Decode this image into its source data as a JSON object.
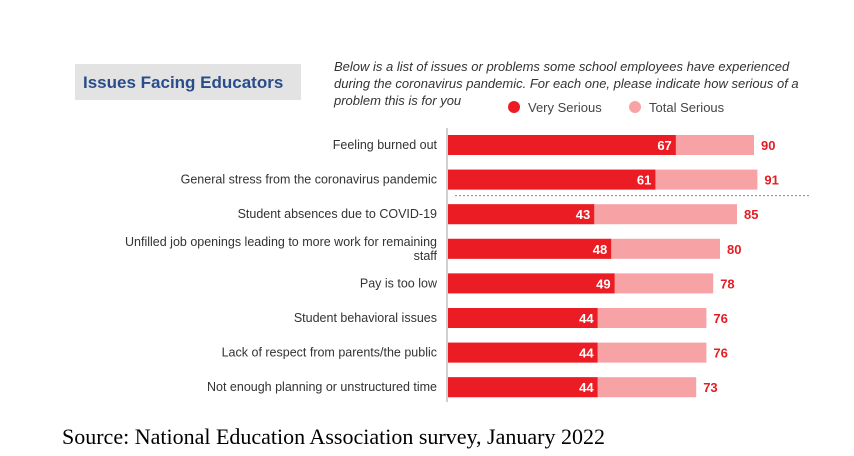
{
  "chart_data": {
    "type": "bar",
    "orientation": "horizontal",
    "title": "Issues Facing Educators",
    "subtitle": "Below is a list of issues or problems some school employees have experienced during the coronavirus pandemic. For each one, please indicate how serious of a problem this is for you",
    "categories": [
      "Feeling burned out",
      "General stress from the coronavirus pandemic",
      "Student absences due to COVID-19",
      "Unfilled job openings leading to more work for remaining staff",
      "Pay is too low",
      "Student behavioral issues",
      "Lack of respect from parents/the public",
      "Not enough planning or unstructured time"
    ],
    "category_lines": [
      [
        "Feeling burned out"
      ],
      [
        "General stress from the coronavirus pandemic"
      ],
      [
        "Student absences due to COVID-19"
      ],
      [
        "Unfilled job openings leading to more work for remaining",
        "staff"
      ],
      [
        "Pay is too low"
      ],
      [
        "Student behavioral issues"
      ],
      [
        "Lack of respect from parents/the public"
      ],
      [
        "Not enough planning or unstructured time"
      ]
    ],
    "series": [
      {
        "name": "Very Serious",
        "color": "#ec1c24",
        "values": [
          67,
          61,
          43,
          48,
          49,
          44,
          44,
          44
        ]
      },
      {
        "name": "Total Serious",
        "color": "#f7a3a6",
        "values": [
          90,
          91,
          85,
          80,
          78,
          76,
          76,
          73
        ]
      }
    ],
    "label_color_inside": "#ffffff",
    "label_color_outside": "#e31d25",
    "separator_after_index": 1,
    "xlim": [
      0,
      100
    ],
    "grid": false,
    "legend": "top-right",
    "xlabel": "",
    "ylabel": ""
  },
  "header": {
    "title": "Issues Facing Educators",
    "question": "Below is a list of issues or problems some school employees have experienced during the coronavirus pandemic. For each one, please indicate how serious of a problem this is for you"
  },
  "legend": {
    "items": [
      {
        "label": "Very Serious",
        "color": "#ec1c24"
      },
      {
        "label": "Total Serious",
        "color": "#f7a3a6"
      }
    ]
  },
  "source": "Source: National Education Association survey, January 2022"
}
